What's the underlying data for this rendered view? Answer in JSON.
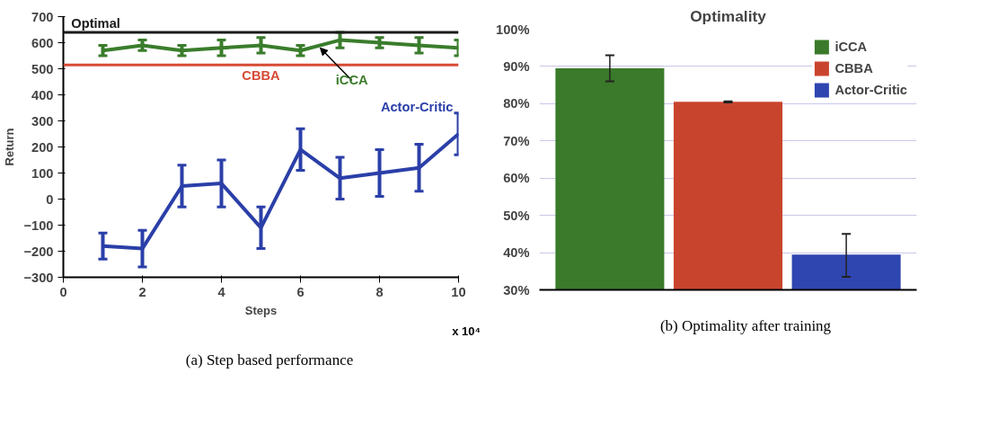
{
  "chart_data": [
    {
      "type": "line",
      "xlabel": "Steps",
      "ylabel": "Return",
      "xlim": [
        0,
        10
      ],
      "xticks": [
        0,
        2,
        4,
        6,
        8,
        10
      ],
      "ylim": [
        -300,
        700
      ],
      "yticks": [
        -300,
        -200,
        -100,
        0,
        100,
        200,
        300,
        400,
        500,
        600,
        700
      ],
      "x": [
        1,
        2,
        3,
        4,
        5,
        6,
        7,
        8,
        9,
        10
      ],
      "grid": false,
      "marker": "none",
      "line_style": "solid",
      "series": [
        {
          "name": "iCCA",
          "color": "#3a7d2c",
          "values": [
            570,
            590,
            570,
            580,
            590,
            570,
            610,
            600,
            590,
            580
          ],
          "errors": [
            20,
            20,
            20,
            30,
            30,
            20,
            30,
            20,
            30,
            30
          ]
        },
        {
          "name": "Actor-Critic",
          "color": "#2b3fa8",
          "values": [
            -180,
            -190,
            50,
            60,
            -110,
            190,
            80,
            100,
            120,
            250
          ],
          "errors": [
            50,
            70,
            80,
            90,
            80,
            80,
            80,
            90,
            90,
            80
          ]
        }
      ],
      "ref_lines": [
        {
          "axis": "y",
          "value": 640,
          "label": "Optimal",
          "color": "#1a1a1a"
        },
        {
          "axis": "y",
          "value": 515,
          "label": "CBBA",
          "color": "#d64a35"
        }
      ],
      "annotations": [
        "x 10⁴",
        "(a)  Step based performance"
      ]
    },
    {
      "type": "bar",
      "title": "Optimality",
      "categories": [
        null
      ],
      "ylim": [
        30,
        100
      ],
      "yticks": [
        {
          "value": 30,
          "label": "30%"
        },
        {
          "value": 40,
          "label": "40%"
        },
        {
          "value": 50,
          "label": "50%"
        },
        {
          "value": 60,
          "label": "60%"
        },
        {
          "value": 70,
          "label": "70%"
        },
        {
          "value": 80,
          "label": "80%"
        },
        {
          "value": 90,
          "label": "90%"
        },
        {
          "value": 100,
          "label": "100%"
        }
      ],
      "grid": "y",
      "legend": "top right",
      "series": [
        {
          "name": "iCCA",
          "color": "#3a7a2a",
          "values": [
            89.5
          ],
          "errors": [
            [
              86,
              93
            ]
          ]
        },
        {
          "name": "CBBA",
          "color": "#c9442d",
          "values": [
            80.5
          ],
          "errors": [
            [
              80.3,
              80.6
            ]
          ]
        },
        {
          "name": "Actor-Critic",
          "color": "#2f45b0",
          "values": [
            39.5
          ],
          "errors": [
            [
              33.5,
              45
            ]
          ]
        }
      ],
      "annotations": [
        "(b)  Optimality after training"
      ]
    }
  ]
}
